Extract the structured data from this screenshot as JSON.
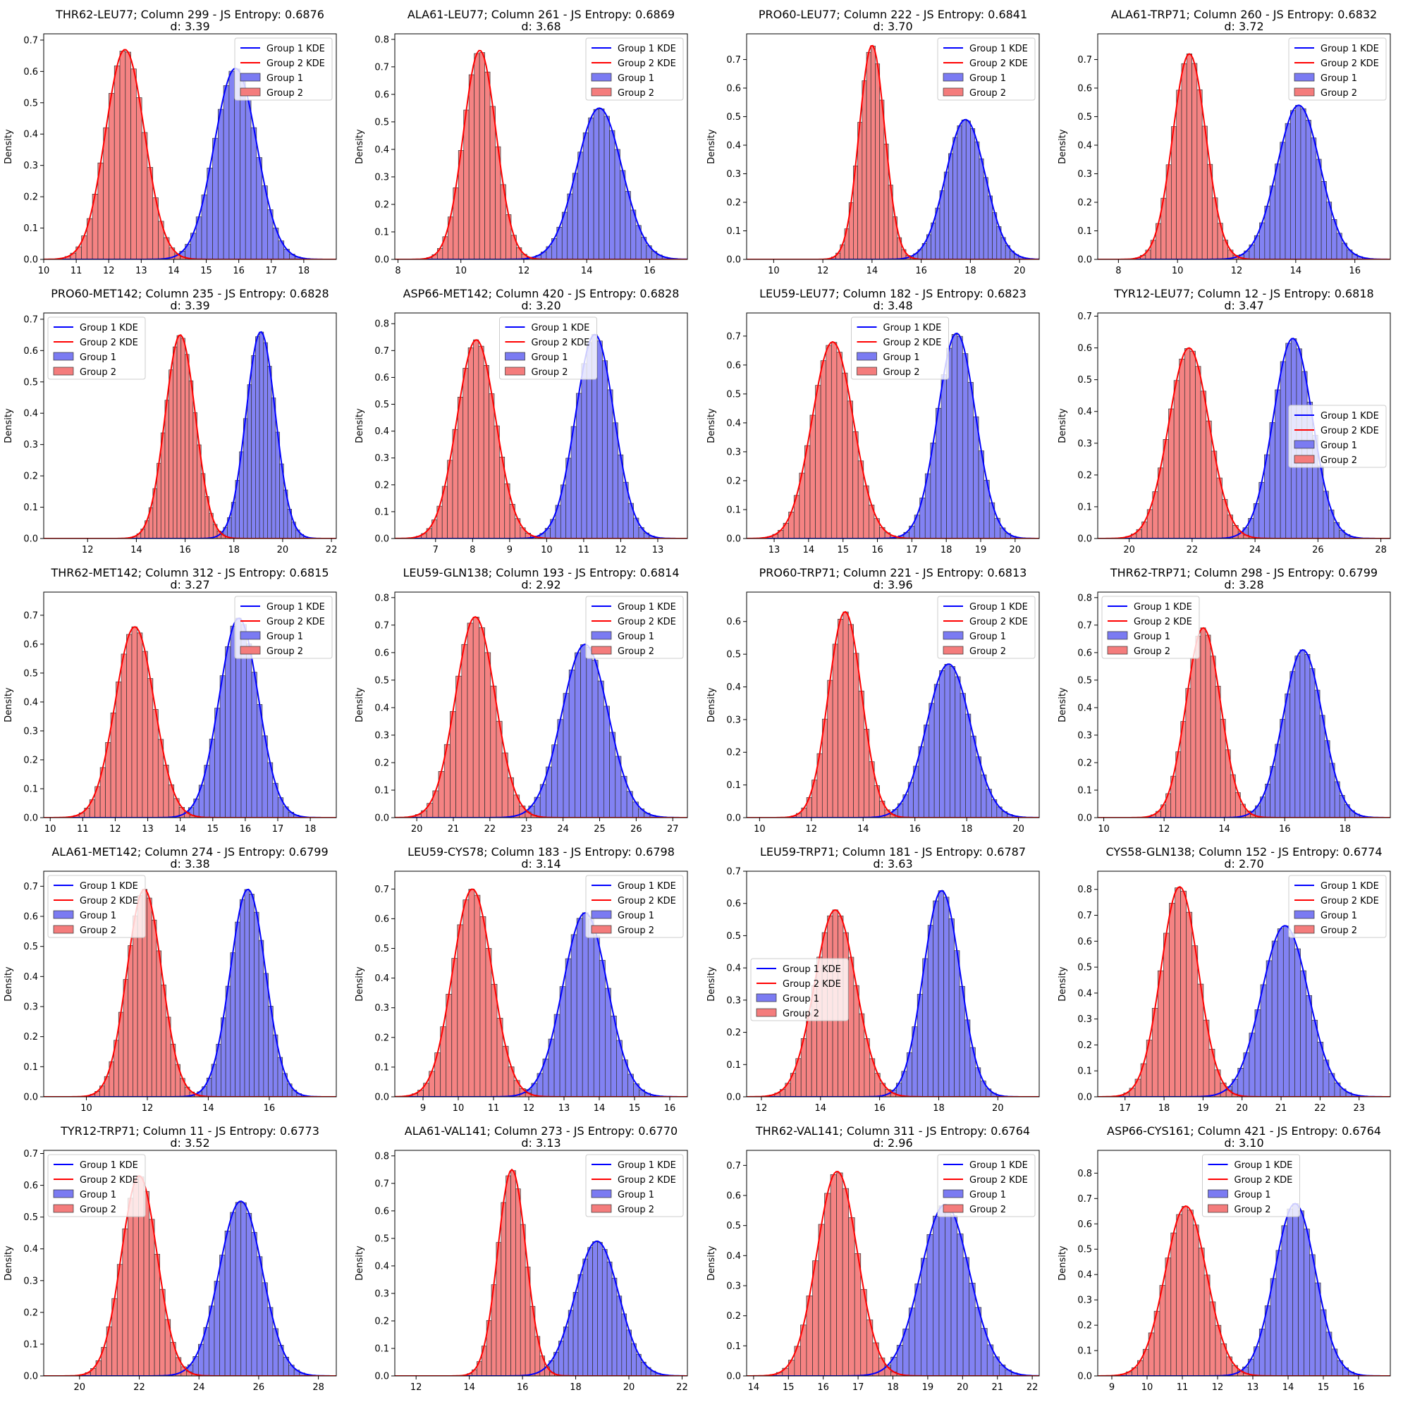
{
  "figure": {
    "ylabel": "Density",
    "colors": {
      "group1": "#0000ff",
      "group2": "#ff0000",
      "group1_fill": "#7b7bf2",
      "group2_fill": "#f47c7c"
    },
    "legend_labels": [
      "Group 1 KDE",
      "Group 2 KDE",
      "Group 1",
      "Group 2"
    ]
  },
  "chart_data": [
    {
      "type": "histogram",
      "title": "THR62-LEU77; Column 299 - JS Entropy: 0.6876",
      "subtitle": "d: 3.39",
      "xlim": [
        10,
        19
      ],
      "ylim": [
        0,
        0.72
      ],
      "xticks": [
        10,
        11,
        12,
        13,
        14,
        15,
        16,
        17,
        18
      ],
      "yticks": [
        0,
        0.1,
        0.2,
        0.3,
        0.4,
        0.5,
        0.6,
        0.7
      ],
      "legend": "upper right",
      "series": [
        {
          "name": "Group 1",
          "mean": 15.9,
          "sd": 0.65,
          "peak": 0.61
        },
        {
          "name": "Group 2",
          "mean": 12.5,
          "sd": 0.6,
          "peak": 0.67
        }
      ]
    },
    {
      "type": "histogram",
      "title": "ALA61-LEU77; Column 261 - JS Entropy: 0.6869",
      "subtitle": "d: 3.68",
      "xlim": [
        7.9,
        17.2
      ],
      "ylim": [
        0,
        0.82
      ],
      "xticks": [
        8,
        10,
        12,
        14,
        16
      ],
      "yticks": [
        0,
        0.1,
        0.2,
        0.3,
        0.4,
        0.5,
        0.6,
        0.7,
        0.8
      ],
      "legend": "upper right",
      "series": [
        {
          "name": "Group 1",
          "mean": 14.4,
          "sd": 0.72,
          "peak": 0.55
        },
        {
          "name": "Group 2",
          "mean": 10.6,
          "sd": 0.52,
          "peak": 0.76
        }
      ]
    },
    {
      "type": "histogram",
      "title": "PRO60-LEU77; Column 222 - JS Entropy: 0.6841",
      "subtitle": "d: 3.70",
      "xlim": [
        8.9,
        20.8
      ],
      "ylim": [
        0,
        0.79
      ],
      "xticks": [
        10,
        12,
        14,
        16,
        18,
        20
      ],
      "yticks": [
        0,
        0.1,
        0.2,
        0.3,
        0.4,
        0.5,
        0.6,
        0.7
      ],
      "legend": "upper right",
      "series": [
        {
          "name": "Group 1",
          "mean": 17.8,
          "sd": 0.8,
          "peak": 0.49
        },
        {
          "name": "Group 2",
          "mean": 14.0,
          "sd": 0.52,
          "peak": 0.75
        }
      ]
    },
    {
      "type": "histogram",
      "title": "ALA61-TRP71; Column 260 - JS Entropy: 0.6832",
      "subtitle": "d: 3.72",
      "xlim": [
        7.3,
        17.2
      ],
      "ylim": [
        0,
        0.79
      ],
      "xticks": [
        8,
        10,
        12,
        14,
        16
      ],
      "yticks": [
        0,
        0.1,
        0.2,
        0.3,
        0.4,
        0.5,
        0.6,
        0.7
      ],
      "legend": "upper right",
      "series": [
        {
          "name": "Group 1",
          "mean": 14.1,
          "sd": 0.73,
          "peak": 0.54
        },
        {
          "name": "Group 2",
          "mean": 10.4,
          "sd": 0.56,
          "peak": 0.72
        }
      ]
    },
    {
      "type": "histogram",
      "title": "PRO60-MET142; Column 235 - JS Entropy: 0.6828",
      "subtitle": "d: 3.39",
      "xlim": [
        10.2,
        22.2
      ],
      "ylim": [
        0,
        0.72
      ],
      "xticks": [
        12,
        14,
        16,
        18,
        20,
        22
      ],
      "yticks": [
        0,
        0.1,
        0.2,
        0.3,
        0.4,
        0.5,
        0.6,
        0.7
      ],
      "legend": "upper left",
      "series": [
        {
          "name": "Group 1",
          "mean": 19.1,
          "sd": 0.6,
          "peak": 0.66
        },
        {
          "name": "Group 2",
          "mean": 15.8,
          "sd": 0.62,
          "peak": 0.65
        }
      ]
    },
    {
      "type": "histogram",
      "title": "ASP66-MET142; Column 420 - JS Entropy: 0.6828",
      "subtitle": "d: 3.20",
      "xlim": [
        5.9,
        13.8
      ],
      "ylim": [
        0,
        0.84
      ],
      "xticks": [
        7,
        8,
        9,
        10,
        11,
        12,
        13
      ],
      "yticks": [
        0,
        0.1,
        0.2,
        0.3,
        0.4,
        0.5,
        0.6,
        0.7,
        0.8
      ],
      "legend": "upper center",
      "series": [
        {
          "name": "Group 1",
          "mean": 11.3,
          "sd": 0.52,
          "peak": 0.76
        },
        {
          "name": "Group 2",
          "mean": 8.1,
          "sd": 0.52,
          "peak": 0.74
        }
      ]
    },
    {
      "type": "histogram",
      "title": "LEU59-LEU77; Column 182 - JS Entropy: 0.6823",
      "subtitle": "d: 3.48",
      "xlim": [
        12.2,
        20.7
      ],
      "ylim": [
        0,
        0.78
      ],
      "xticks": [
        13,
        14,
        15,
        16,
        17,
        18,
        19,
        20
      ],
      "yticks": [
        0,
        0.1,
        0.2,
        0.3,
        0.4,
        0.5,
        0.6,
        0.7
      ],
      "legend": "upper center",
      "series": [
        {
          "name": "Group 1",
          "mean": 18.3,
          "sd": 0.55,
          "peak": 0.71
        },
        {
          "name": "Group 2",
          "mean": 14.7,
          "sd": 0.6,
          "peak": 0.68
        }
      ]
    },
    {
      "type": "histogram",
      "title": "TYR12-LEU77; Column 12 - JS Entropy: 0.6818",
      "subtitle": "d: 3.47",
      "xlim": [
        19,
        28.3
      ],
      "ylim": [
        0,
        0.71
      ],
      "xticks": [
        20,
        22,
        24,
        26,
        28
      ],
      "yticks": [
        0,
        0.1,
        0.2,
        0.3,
        0.4,
        0.5,
        0.6,
        0.7
      ],
      "legend": "center right",
      "series": [
        {
          "name": "Group 1",
          "mean": 25.2,
          "sd": 0.62,
          "peak": 0.63
        },
        {
          "name": "Group 2",
          "mean": 21.9,
          "sd": 0.64,
          "peak": 0.6
        }
      ]
    },
    {
      "type": "histogram",
      "title": "THR62-MET142; Column 312 - JS Entropy: 0.6815",
      "subtitle": "d: 3.27",
      "xlim": [
        9.8,
        18.8
      ],
      "ylim": [
        0,
        0.78
      ],
      "xticks": [
        10,
        11,
        12,
        13,
        14,
        15,
        16,
        17,
        18
      ],
      "yticks": [
        0,
        0.1,
        0.2,
        0.3,
        0.4,
        0.5,
        0.6,
        0.7
      ],
      "legend": "upper right",
      "series": [
        {
          "name": "Group 1",
          "mean": 15.8,
          "sd": 0.6,
          "peak": 0.69
        },
        {
          "name": "Group 2",
          "mean": 12.6,
          "sd": 0.6,
          "peak": 0.66
        }
      ]
    },
    {
      "type": "histogram",
      "title": "LEU59-GLN138; Column 193 - JS Entropy: 0.6814",
      "subtitle": "d: 2.92",
      "xlim": [
        19.4,
        27.4
      ],
      "ylim": [
        0,
        0.82
      ],
      "xticks": [
        20,
        21,
        22,
        23,
        24,
        25,
        26,
        27
      ],
      "yticks": [
        0,
        0.1,
        0.2,
        0.3,
        0.4,
        0.5,
        0.6,
        0.7,
        0.8
      ],
      "legend": "upper right",
      "series": [
        {
          "name": "Group 1",
          "mean": 24.6,
          "sd": 0.63,
          "peak": 0.63
        },
        {
          "name": "Group 2",
          "mean": 21.6,
          "sd": 0.54,
          "peak": 0.73
        }
      ]
    },
    {
      "type": "histogram",
      "title": "PRO60-TRP71; Column 221 - JS Entropy: 0.6813",
      "subtitle": "d: 3.96",
      "xlim": [
        9.5,
        20.8
      ],
      "ylim": [
        0,
        0.69
      ],
      "xticks": [
        10,
        12,
        14,
        16,
        18,
        20
      ],
      "yticks": [
        0,
        0.1,
        0.2,
        0.3,
        0.4,
        0.5,
        0.6
      ],
      "legend": "upper right",
      "series": [
        {
          "name": "Group 1",
          "mean": 17.3,
          "sd": 0.85,
          "peak": 0.47
        },
        {
          "name": "Group 2",
          "mean": 13.3,
          "sd": 0.64,
          "peak": 0.63
        }
      ]
    },
    {
      "type": "histogram",
      "title": "THR62-TRP71; Column 298 - JS Entropy: 0.6799",
      "subtitle": "d: 3.28",
      "xlim": [
        9.8,
        19.5
      ],
      "ylim": [
        0,
        0.82
      ],
      "xticks": [
        10,
        12,
        14,
        16,
        18
      ],
      "yticks": [
        0,
        0.1,
        0.2,
        0.3,
        0.4,
        0.5,
        0.6,
        0.7,
        0.8
      ],
      "legend": "upper left",
      "series": [
        {
          "name": "Group 1",
          "mean": 16.6,
          "sd": 0.65,
          "peak": 0.61
        },
        {
          "name": "Group 2",
          "mean": 13.3,
          "sd": 0.57,
          "peak": 0.69
        }
      ]
    },
    {
      "type": "histogram",
      "title": "ALA61-MET142; Column 274 - JS Entropy: 0.6799",
      "subtitle": "d: 3.38",
      "xlim": [
        8.6,
        18.2
      ],
      "ylim": [
        0,
        0.75
      ],
      "xticks": [
        10,
        12,
        14,
        16
      ],
      "yticks": [
        0,
        0.1,
        0.2,
        0.3,
        0.4,
        0.5,
        0.6,
        0.7
      ],
      "legend": "upper left",
      "series": [
        {
          "name": "Group 1",
          "mean": 15.3,
          "sd": 0.58,
          "peak": 0.69
        },
        {
          "name": "Group 2",
          "mean": 11.9,
          "sd": 0.57,
          "peak": 0.69
        }
      ]
    },
    {
      "type": "histogram",
      "title": "LEU59-CYS78; Column 183 - JS Entropy: 0.6798",
      "subtitle": "d: 3.14",
      "xlim": [
        8.2,
        16.5
      ],
      "ylim": [
        0,
        0.76
      ],
      "xticks": [
        9,
        10,
        11,
        12,
        13,
        14,
        15,
        16
      ],
      "yticks": [
        0,
        0.1,
        0.2,
        0.3,
        0.4,
        0.5,
        0.6,
        0.7
      ],
      "legend": "upper right",
      "series": [
        {
          "name": "Group 1",
          "mean": 13.6,
          "sd": 0.63,
          "peak": 0.62
        },
        {
          "name": "Group 2",
          "mean": 10.4,
          "sd": 0.56,
          "peak": 0.7
        }
      ]
    },
    {
      "type": "histogram",
      "title": "LEU59-TRP71; Column 181 - JS Entropy: 0.6787",
      "subtitle": "d: 3.63",
      "xlim": [
        11.5,
        21.4
      ],
      "ylim": [
        0,
        0.7
      ],
      "xticks": [
        12,
        14,
        16,
        18,
        20
      ],
      "yticks": [
        0,
        0.1,
        0.2,
        0.3,
        0.4,
        0.5,
        0.6,
        0.7
      ],
      "legend": "center left",
      "series": [
        {
          "name": "Group 1",
          "mean": 18.1,
          "sd": 0.62,
          "peak": 0.64
        },
        {
          "name": "Group 2",
          "mean": 14.5,
          "sd": 0.7,
          "peak": 0.58
        }
      ]
    },
    {
      "type": "histogram",
      "title": "CYS58-GLN138; Column 152 - JS Entropy: 0.6774",
      "subtitle": "d: 2.70",
      "xlim": [
        16.3,
        23.8
      ],
      "ylim": [
        0,
        0.87
      ],
      "xticks": [
        17,
        18,
        19,
        20,
        21,
        22,
        23
      ],
      "yticks": [
        0,
        0.1,
        0.2,
        0.3,
        0.4,
        0.5,
        0.6,
        0.7,
        0.8
      ],
      "legend": "upper right",
      "series": [
        {
          "name": "Group 1",
          "mean": 21.1,
          "sd": 0.6,
          "peak": 0.66
        },
        {
          "name": "Group 2",
          "mean": 18.4,
          "sd": 0.48,
          "peak": 0.81
        }
      ]
    },
    {
      "type": "histogram",
      "title": "TYR12-TRP71; Column 11 - JS Entropy: 0.6773",
      "subtitle": "d: 3.52",
      "xlim": [
        18.8,
        28.6
      ],
      "ylim": [
        0,
        0.71
      ],
      "xticks": [
        20,
        22,
        24,
        26,
        28
      ],
      "yticks": [
        0,
        0.1,
        0.2,
        0.3,
        0.4,
        0.5,
        0.6,
        0.7
      ],
      "legend": "upper left",
      "series": [
        {
          "name": "Group 1",
          "mean": 25.4,
          "sd": 0.72,
          "peak": 0.55
        },
        {
          "name": "Group 2",
          "mean": 22.0,
          "sd": 0.6,
          "peak": 0.63
        }
      ]
    },
    {
      "type": "histogram",
      "title": "ALA61-VAL141; Column 273 - JS Entropy: 0.6770",
      "subtitle": "d: 3.13",
      "xlim": [
        11.2,
        22.2
      ],
      "ylim": [
        0,
        0.82
      ],
      "xticks": [
        12,
        14,
        16,
        18,
        20,
        22
      ],
      "yticks": [
        0,
        0.1,
        0.2,
        0.3,
        0.4,
        0.5,
        0.6,
        0.7,
        0.8
      ],
      "legend": "upper right",
      "series": [
        {
          "name": "Group 1",
          "mean": 18.8,
          "sd": 0.82,
          "peak": 0.49
        },
        {
          "name": "Group 2",
          "mean": 15.6,
          "sd": 0.53,
          "peak": 0.75
        }
      ]
    },
    {
      "type": "histogram",
      "title": "THR62-VAL141; Column 311 - JS Entropy: 0.6764",
      "subtitle": "d: 2.96",
      "xlim": [
        13.8,
        22.2
      ],
      "ylim": [
        0,
        0.75
      ],
      "xticks": [
        14,
        15,
        16,
        17,
        18,
        19,
        20,
        21,
        22
      ],
      "yticks": [
        0,
        0.1,
        0.2,
        0.3,
        0.4,
        0.5,
        0.6,
        0.7
      ],
      "legend": "upper right",
      "series": [
        {
          "name": "Group 1",
          "mean": 19.5,
          "sd": 0.7,
          "peak": 0.57
        },
        {
          "name": "Group 2",
          "mean": 16.4,
          "sd": 0.58,
          "peak": 0.68
        }
      ]
    },
    {
      "type": "histogram",
      "title": "ASP66-CYS161; Column 421 - JS Entropy: 0.6764",
      "subtitle": "d: 3.10",
      "xlim": [
        8.6,
        16.9
      ],
      "ylim": [
        0,
        0.89
      ],
      "xticks": [
        9,
        10,
        11,
        12,
        13,
        14,
        15,
        16
      ],
      "yticks": [
        0,
        0.1,
        0.2,
        0.3,
        0.4,
        0.5,
        0.6,
        0.7,
        0.8
      ],
      "legend": "upper center",
      "series": [
        {
          "name": "Group 1",
          "mean": 14.2,
          "sd": 0.58,
          "peak": 0.68
        },
        {
          "name": "Group 2",
          "mean": 11.1,
          "sd": 0.59,
          "peak": 0.67
        }
      ]
    }
  ]
}
